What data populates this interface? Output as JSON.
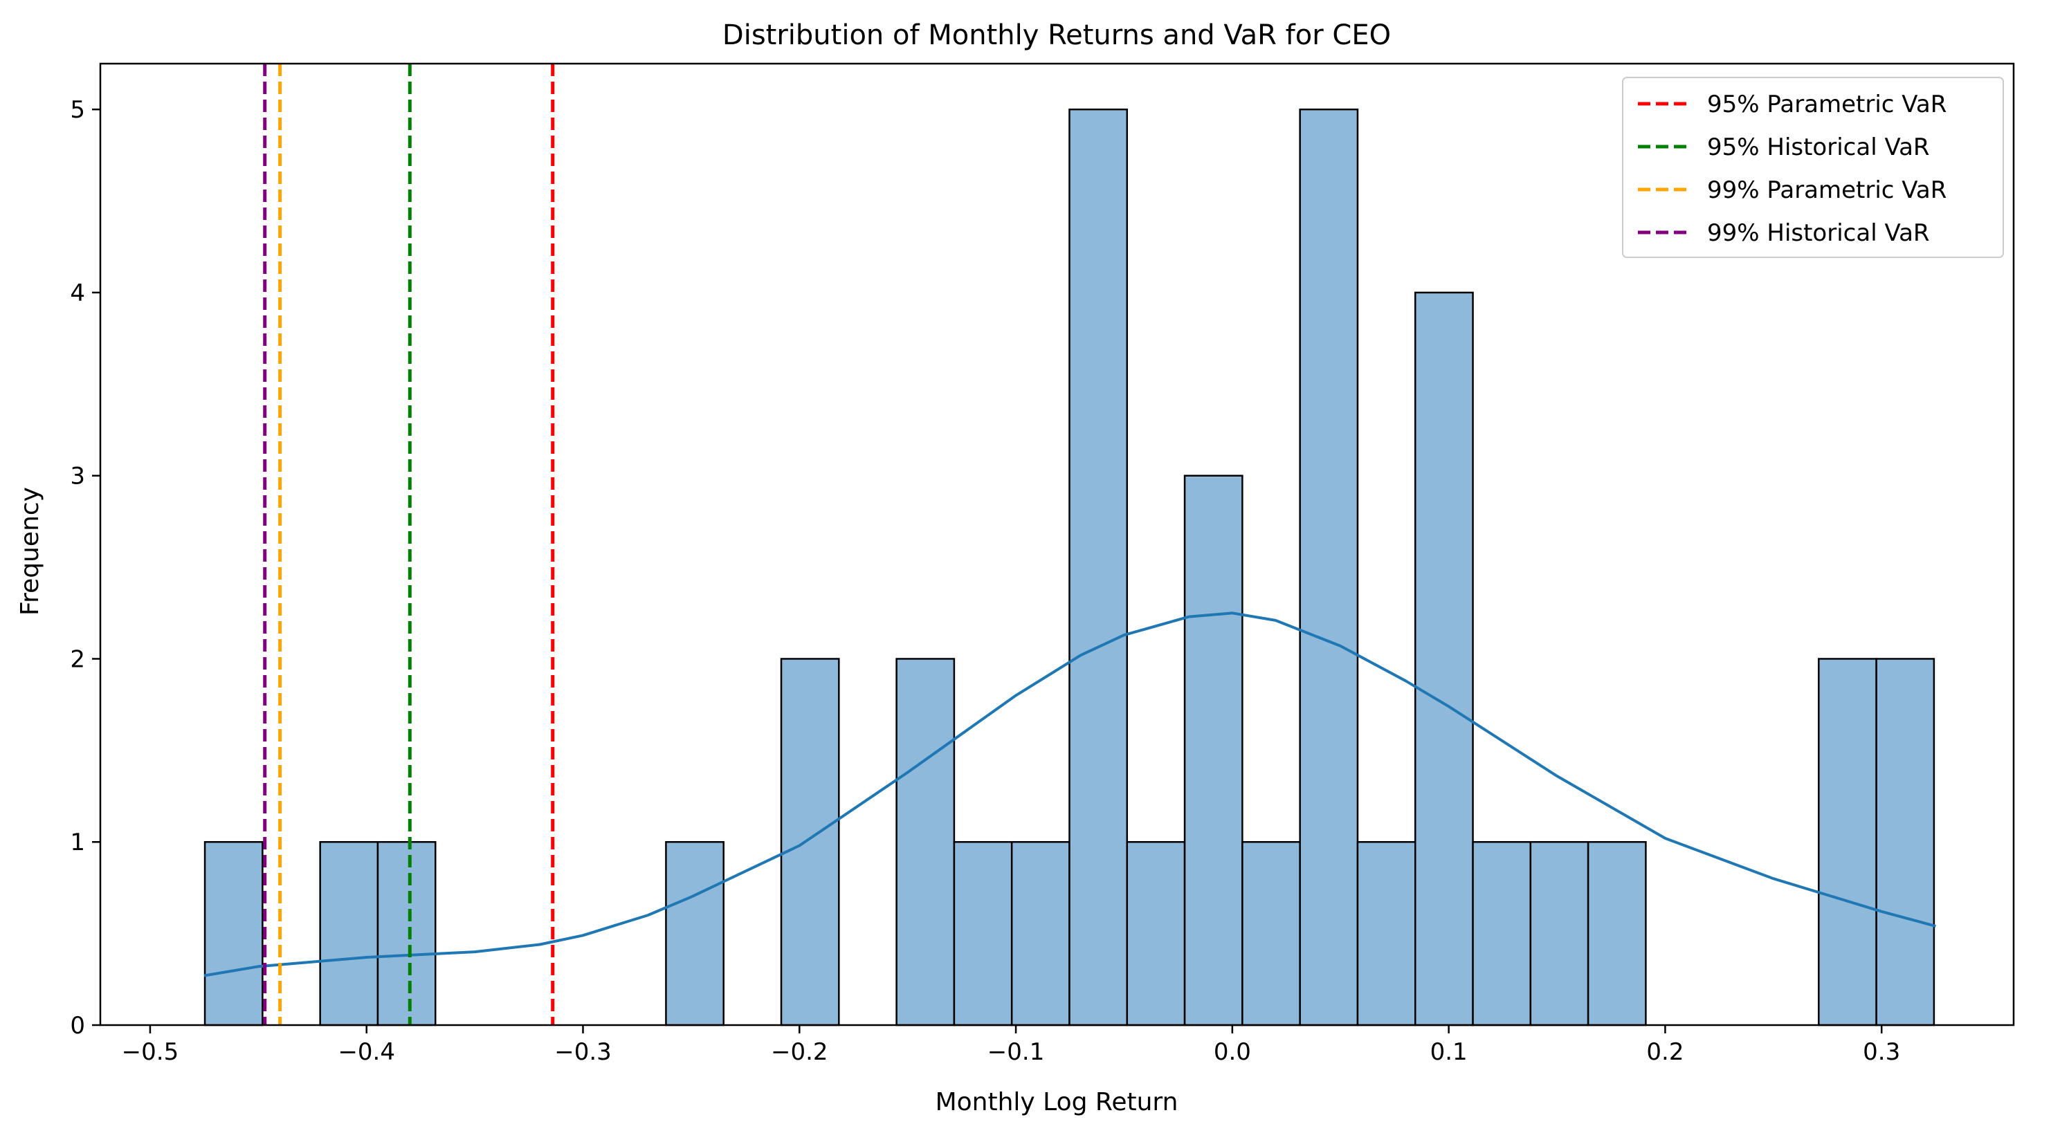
{
  "chart_data": {
    "type": "bar",
    "title": "Distribution of Monthly Returns and VaR for CEO",
    "xlabel": "Monthly Log Return",
    "ylabel": "Frequency",
    "xlim": [
      -0.523,
      0.361
    ],
    "ylim": [
      0,
      5.25
    ],
    "x_ticks": [
      -0.5,
      -0.4,
      -0.3,
      -0.2,
      -0.1,
      0.0,
      0.1,
      0.2,
      0.3
    ],
    "x_tick_labels": [
      "−0.5",
      "−0.4",
      "−0.3",
      "−0.2",
      "−0.1",
      "0.0",
      "0.1",
      "0.2",
      "0.3"
    ],
    "y_ticks": [
      0,
      1,
      2,
      3,
      4,
      5
    ],
    "y_tick_labels": [
      "0",
      "1",
      "2",
      "3",
      "4",
      "5"
    ],
    "grid": false,
    "legend_placement": "top-right",
    "bin_start": -0.4747,
    "bin_width": 0.02663,
    "counts": [
      1,
      0,
      1,
      1,
      0,
      0,
      0,
      0,
      1,
      0,
      2,
      0,
      2,
      1,
      1,
      5,
      1,
      3,
      1,
      5,
      1,
      4,
      1,
      1,
      1,
      0,
      0,
      0,
      2,
      2
    ],
    "bar_color": "#8fb9da",
    "kde": {
      "name": "",
      "color": "#1f77b4",
      "x": [
        -0.475,
        -0.45,
        -0.4,
        -0.35,
        -0.32,
        -0.3,
        -0.27,
        -0.25,
        -0.2,
        -0.15,
        -0.1,
        -0.07,
        -0.05,
        -0.02,
        0.0,
        0.02,
        0.05,
        0.08,
        0.1,
        0.15,
        0.2,
        0.25,
        0.3,
        0.325
      ],
      "y": [
        0.27,
        0.32,
        0.37,
        0.4,
        0.44,
        0.49,
        0.6,
        0.7,
        0.98,
        1.38,
        1.8,
        2.02,
        2.13,
        2.23,
        2.25,
        2.21,
        2.07,
        1.88,
        1.74,
        1.36,
        1.02,
        0.8,
        0.62,
        0.54
      ]
    },
    "var_lines": [
      {
        "name": "95% Parametric VaR",
        "x": -0.314,
        "color": "#ff0000"
      },
      {
        "name": "95% Historical VaR",
        "x": -0.38,
        "color": "#008000"
      },
      {
        "name": "99% Parametric VaR",
        "x": -0.44,
        "color": "#ffa500"
      },
      {
        "name": "99% Historical VaR",
        "x": -0.447,
        "color": "#800080"
      }
    ]
  }
}
